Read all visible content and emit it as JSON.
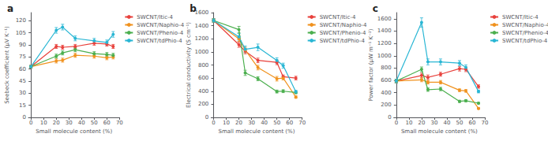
{
  "chart_data": [
    {
      "type": "line",
      "title": "a",
      "xlabel": "Small molecule content (%)",
      "ylabel": "Seebeck coefficient (μV K⁻¹)",
      "xlim": [
        -2,
        70
      ],
      "xticks": [
        0,
        10,
        20,
        30,
        40,
        50,
        60,
        70
      ],
      "ylim": [
        0,
        130
      ],
      "yticks": [
        0,
        15,
        30,
        45,
        60,
        75,
        90,
        105,
        120
      ],
      "grid": false,
      "legend": "upper right",
      "marker": "o",
      "series": [
        {
          "name": "SWCNT/Itic-4",
          "color": "#e8413c",
          "x": [
            0,
            20,
            25,
            35,
            50,
            60,
            65
          ],
          "values": [
            63,
            88,
            87,
            88,
            92,
            91,
            88
          ],
          "yerr": [
            1.5,
            2.5,
            2.5,
            2.5,
            2.5,
            2.5,
            2.5
          ]
        },
        {
          "name": "SWCNT/Naphio-4",
          "color": "#f0921e",
          "x": [
            0,
            20,
            25,
            35,
            50,
            60,
            65
          ],
          "values": [
            63,
            70,
            71,
            77,
            76,
            74,
            75
          ],
          "yerr": [
            1.5,
            2.5,
            2.5,
            2.5,
            2.5,
            2.5,
            2.5
          ]
        },
        {
          "name": "SWCNT/Phenio-4",
          "color": "#4baf4e",
          "x": [
            0,
            20,
            25,
            35,
            50,
            60,
            65
          ],
          "values": [
            63,
            76,
            80,
            84,
            79,
            78,
            77
          ],
          "yerr": [
            1.5,
            2.5,
            2.5,
            2.5,
            2.5,
            2.5,
            2.5
          ]
        },
        {
          "name": "SWCNT/tdPhio-4",
          "color": "#29b6d4",
          "x": [
            0,
            20,
            25,
            35,
            50,
            60,
            65
          ],
          "values": [
            63,
            108,
            112,
            98,
            95,
            93,
            103
          ],
          "yerr": [
            1.5,
            3.5,
            3.5,
            3.0,
            3.0,
            3.0,
            3.5
          ]
        }
      ]
    },
    {
      "type": "line",
      "title": "b",
      "xlabel": "Small molecule content (%)",
      "ylabel": "Electrical conductivity (S cm⁻¹)",
      "xlim": [
        -2,
        70
      ],
      "xticks": [
        0,
        10,
        20,
        30,
        40,
        50,
        60,
        70
      ],
      "ylim": [
        0,
        1600
      ],
      "yticks": [
        0,
        200,
        400,
        600,
        800,
        1000,
        1200,
        1400,
        1600
      ],
      "grid": false,
      "legend": "upper right",
      "marker": "o",
      "series": [
        {
          "name": "SWCNT/Itic-4",
          "color": "#e8413c",
          "x": [
            0,
            20,
            25,
            35,
            50,
            55,
            65
          ],
          "values": [
            1480,
            1110,
            1010,
            870,
            840,
            620,
            600
          ],
          "yerr": [
            25,
            40,
            40,
            35,
            35,
            28,
            28
          ]
        },
        {
          "name": "SWCNT/Naphio-4",
          "color": "#f0921e",
          "x": [
            0,
            20,
            25,
            35,
            50,
            55,
            65
          ],
          "values": [
            1480,
            1200,
            1030,
            760,
            590,
            600,
            310
          ],
          "yerr": [
            25,
            40,
            40,
            35,
            35,
            28,
            18
          ]
        },
        {
          "name": "SWCNT/Phenio-4",
          "color": "#4baf4e",
          "x": [
            0,
            20,
            25,
            35,
            50,
            55,
            65
          ],
          "values": [
            1480,
            1340,
            680,
            590,
            395,
            400,
            380
          ],
          "yerr": [
            25,
            50,
            40,
            30,
            22,
            22,
            18
          ]
        },
        {
          "name": "SWCNT/tdPhio-4",
          "color": "#29b6d4",
          "x": [
            0,
            20,
            25,
            35,
            50,
            55,
            65
          ],
          "values": [
            1480,
            1230,
            1040,
            1070,
            870,
            790,
            390
          ],
          "yerr": [
            25,
            50,
            50,
            50,
            40,
            38,
            22
          ]
        }
      ]
    },
    {
      "type": "line",
      "title": "c",
      "xlabel": "Small molecule content (%)",
      "ylabel": "Power factor (μW m⁻¹ K⁻²)",
      "xlim": [
        -2,
        70
      ],
      "xticks": [
        0,
        10,
        20,
        30,
        40,
        50,
        60,
        70
      ],
      "ylim": [
        0,
        1700
      ],
      "yticks": [
        0,
        200,
        400,
        600,
        800,
        1000,
        1200,
        1400,
        1600
      ],
      "grid": false,
      "legend": "upper right",
      "marker": "o",
      "series": [
        {
          "name": "SWCNT/Itic-4",
          "color": "#e8413c",
          "x": [
            0,
            20,
            25,
            35,
            50,
            55,
            65
          ],
          "values": [
            590,
            680,
            650,
            700,
            790,
            780,
            500
          ],
          "yerr": [
            28,
            38,
            38,
            32,
            38,
            38,
            28
          ]
        },
        {
          "name": "SWCNT/Naphio-4",
          "color": "#f0921e",
          "x": [
            0,
            20,
            25,
            35,
            50,
            55,
            65
          ],
          "values": [
            590,
            610,
            570,
            570,
            440,
            430,
            145
          ],
          "yerr": [
            28,
            32,
            28,
            28,
            22,
            22,
            12
          ]
        },
        {
          "name": "SWCNT/Phenio-4",
          "color": "#4baf4e",
          "x": [
            0,
            20,
            25,
            35,
            50,
            55,
            65
          ],
          "values": [
            590,
            780,
            450,
            460,
            260,
            270,
            230
          ],
          "yerr": [
            28,
            38,
            28,
            28,
            18,
            18,
            13
          ]
        },
        {
          "name": "SWCNT/tdPhio-4",
          "color": "#29b6d4",
          "x": [
            0,
            20,
            25,
            35,
            50,
            55,
            65
          ],
          "values": [
            590,
            1540,
            900,
            900,
            880,
            810,
            420
          ],
          "yerr": [
            28,
            75,
            48,
            48,
            42,
            42,
            22
          ]
        }
      ]
    }
  ]
}
